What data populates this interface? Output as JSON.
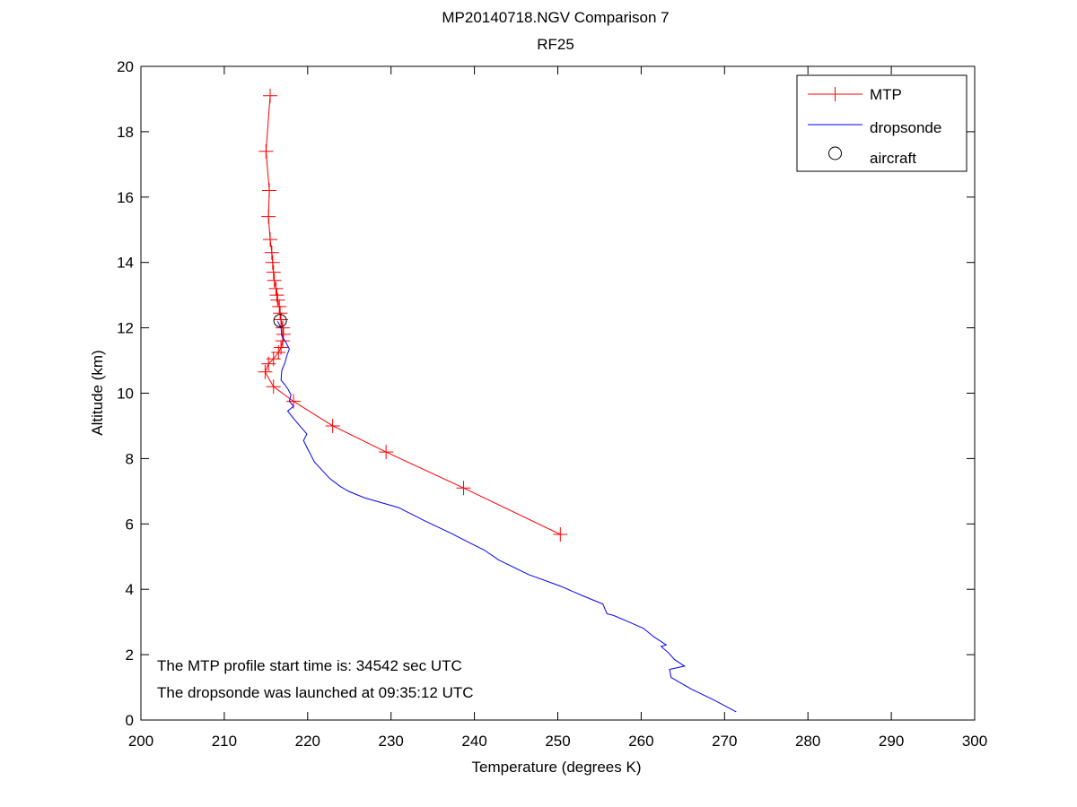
{
  "chart_data": {
    "type": "line",
    "title": "MP20140718.NGV Comparison 7",
    "subtitle": "RF25",
    "xlabel": "Temperature (degrees K)",
    "ylabel": "Altitude (km)",
    "xlim": [
      200,
      300
    ],
    "ylim": [
      0,
      20
    ],
    "xticks": [
      "200",
      "210",
      "220",
      "230",
      "240",
      "250",
      "260",
      "270",
      "280",
      "290",
      "300"
    ],
    "yticks": [
      "0",
      "2",
      "4",
      "6",
      "8",
      "10",
      "12",
      "14",
      "16",
      "18",
      "20"
    ],
    "grid": false,
    "legend_position": "top-right",
    "annotations": [
      "The MTP profile start time is: 34542 sec UTC",
      "The dropsonde was launched at 09:35:12 UTC"
    ],
    "series": [
      {
        "name": "MTP",
        "color": "#ff0000",
        "marker": "plus",
        "points": [
          [
            250.3,
            5.68
          ],
          [
            238.7,
            7.1
          ],
          [
            229.4,
            8.2
          ],
          [
            223.0,
            9.0
          ],
          [
            218.3,
            9.75
          ],
          [
            215.9,
            10.2
          ],
          [
            214.9,
            10.65
          ],
          [
            215.3,
            10.9
          ],
          [
            215.9,
            11.05
          ],
          [
            216.5,
            11.25
          ],
          [
            216.8,
            11.4
          ],
          [
            217.0,
            11.6
          ],
          [
            217.1,
            11.8
          ],
          [
            217.0,
            12.0
          ],
          [
            216.8,
            12.25
          ],
          [
            216.7,
            12.45
          ],
          [
            216.6,
            12.65
          ],
          [
            216.4,
            12.85
          ],
          [
            216.3,
            13.0
          ],
          [
            216.2,
            13.2
          ],
          [
            216.0,
            13.45
          ],
          [
            215.9,
            13.7
          ],
          [
            215.8,
            14.0
          ],
          [
            215.7,
            14.3
          ],
          [
            215.5,
            14.7
          ],
          [
            215.3,
            15.4
          ],
          [
            215.4,
            16.2
          ],
          [
            215.0,
            17.4
          ],
          [
            215.5,
            19.1
          ]
        ]
      },
      {
        "name": "dropsonde",
        "color": "#0000ff",
        "marker": "none",
        "points": [
          [
            271.4,
            0.25
          ],
          [
            268.8,
            0.6
          ],
          [
            266.0,
            0.95
          ],
          [
            263.6,
            1.3
          ],
          [
            263.4,
            1.55
          ],
          [
            265.2,
            1.65
          ],
          [
            264.0,
            1.85
          ],
          [
            263.3,
            2.05
          ],
          [
            262.4,
            2.25
          ],
          [
            263.0,
            2.3
          ],
          [
            261.5,
            2.55
          ],
          [
            260.3,
            2.8
          ],
          [
            258.5,
            3.0
          ],
          [
            256.7,
            3.2
          ],
          [
            255.9,
            3.25
          ],
          [
            255.4,
            3.55
          ],
          [
            253.0,
            3.8
          ],
          [
            250.3,
            4.1
          ],
          [
            246.5,
            4.45
          ],
          [
            242.9,
            4.9
          ],
          [
            241.2,
            5.2
          ],
          [
            239.6,
            5.4
          ],
          [
            237.3,
            5.7
          ],
          [
            234.0,
            6.1
          ],
          [
            230.9,
            6.5
          ],
          [
            226.8,
            6.8
          ],
          [
            224.9,
            7.0
          ],
          [
            223.9,
            7.15
          ],
          [
            222.6,
            7.4
          ],
          [
            220.8,
            7.9
          ],
          [
            220.0,
            8.3
          ],
          [
            219.5,
            8.55
          ],
          [
            219.9,
            8.75
          ],
          [
            218.4,
            9.2
          ],
          [
            217.6,
            9.45
          ],
          [
            218.3,
            9.6
          ],
          [
            217.8,
            9.75
          ],
          [
            218.0,
            9.95
          ],
          [
            217.7,
            10.1
          ],
          [
            217.3,
            10.25
          ],
          [
            216.8,
            10.4
          ],
          [
            216.9,
            10.7
          ],
          [
            217.3,
            10.95
          ],
          [
            217.5,
            11.15
          ],
          [
            217.8,
            11.35
          ],
          [
            217.4,
            11.55
          ],
          [
            216.9,
            11.75
          ],
          [
            216.8,
            12.0
          ],
          [
            216.4,
            12.2
          ]
        ]
      }
    ],
    "aircraft": {
      "name": "aircraft",
      "marker": "circle",
      "points": [
        [
          216.7,
          12.22
        ]
      ]
    }
  }
}
